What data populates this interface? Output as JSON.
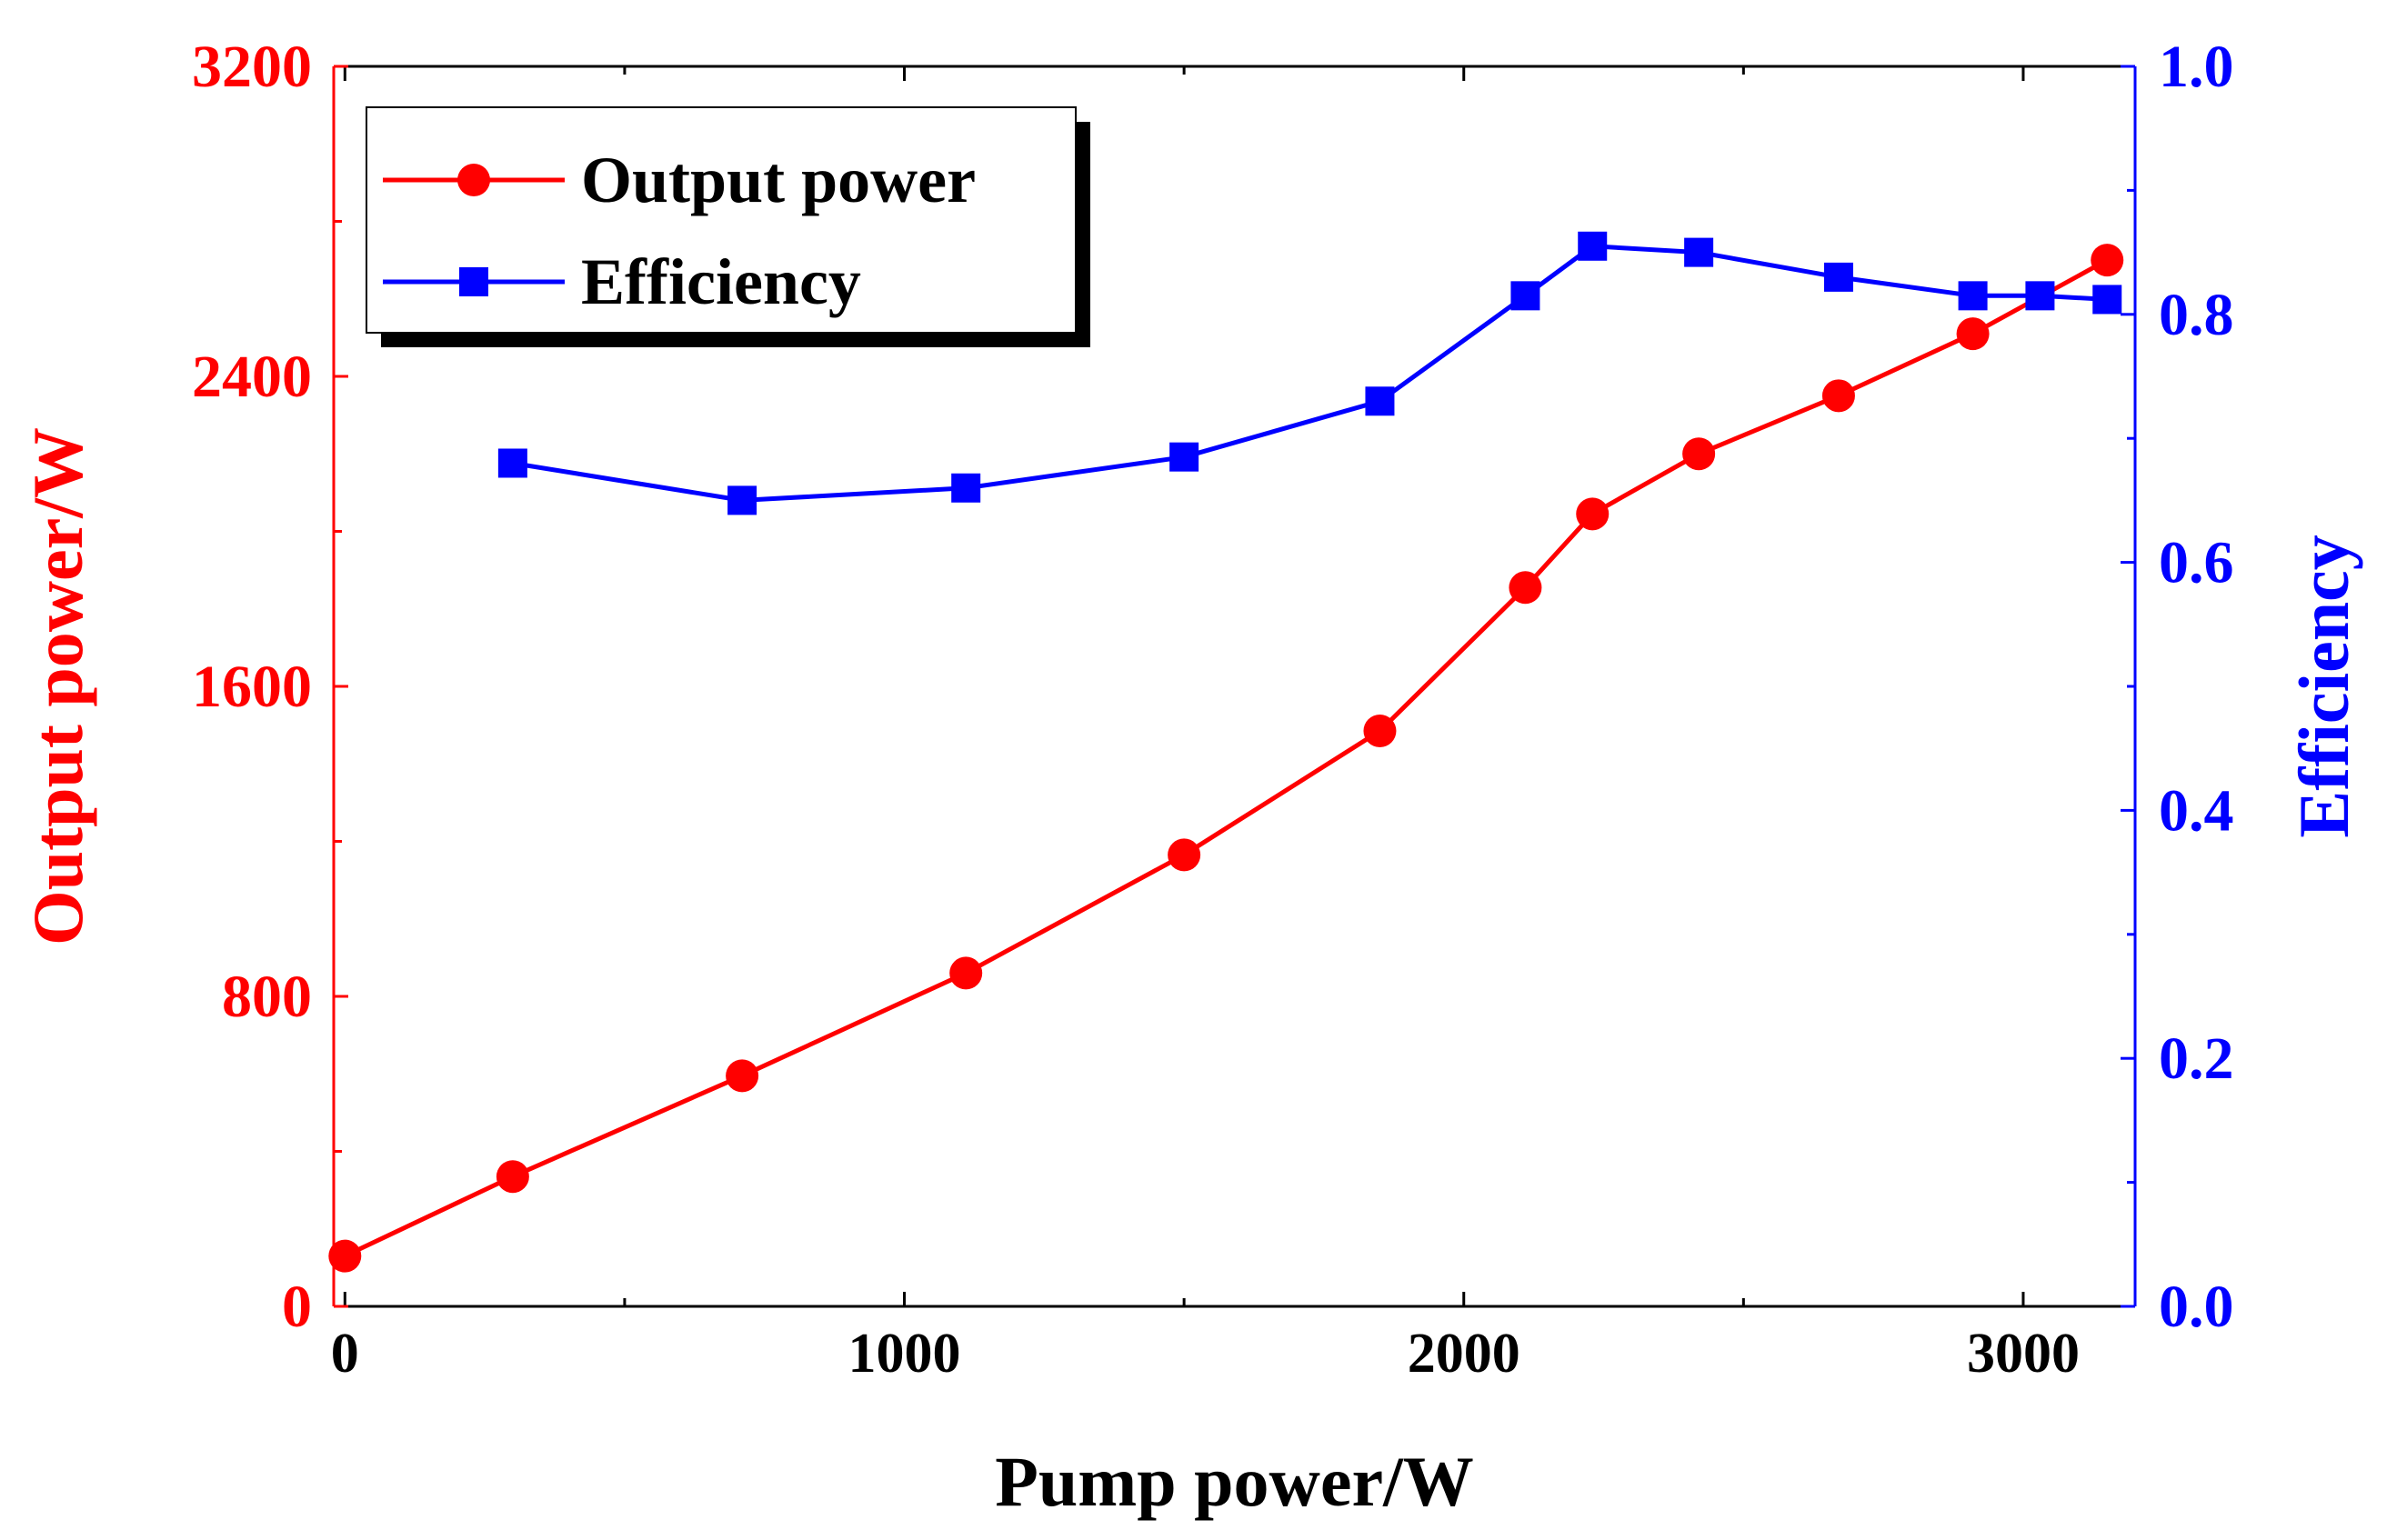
{
  "chart_data": {
    "type": "line",
    "title": "",
    "xlabel": "Pump power/W",
    "ylabel_left": "Output power/W",
    "ylabel_right": "Efficiency",
    "xlim": [
      -20,
      3200
    ],
    "ylim_left": [
      0,
      3200
    ],
    "ylim_right": [
      0.0,
      1.0
    ],
    "x_ticks": [
      "0",
      "1000",
      "2000",
      "3000"
    ],
    "y_left_ticks": [
      "0",
      "800",
      "1600",
      "2400",
      "3200"
    ],
    "y_right_ticks": [
      "0.0",
      "0.2",
      "0.4",
      "0.6",
      "0.8",
      "1.0"
    ],
    "grid": false,
    "legend_position": "top-left",
    "series": [
      {
        "name": "Output power",
        "axis": "left",
        "marker": "circle",
        "color": "#ff0000",
        "x": [
          0,
          300,
          710,
          1110,
          1500,
          1850,
          2110,
          2230,
          2420,
          2670,
          2910,
          3150
        ],
        "values": [
          130,
          335,
          595,
          860,
          1165,
          1485,
          1855,
          2045,
          2200,
          2350,
          2510,
          2700
        ]
      },
      {
        "name": "Efficiency",
        "axis": "right",
        "marker": "square",
        "color": "#0000ff",
        "x": [
          300,
          710,
          1110,
          1500,
          1850,
          2110,
          2230,
          2420,
          2670,
          2910,
          3030,
          3150
        ],
        "values": [
          0.68,
          0.65,
          0.66,
          0.685,
          0.73,
          0.815,
          0.855,
          0.85,
          0.83,
          0.815,
          0.815,
          0.812
        ]
      }
    ]
  },
  "colors": {
    "left_axis": "#ff0000",
    "right_axis": "#0000ff",
    "frame": "#000000"
  }
}
